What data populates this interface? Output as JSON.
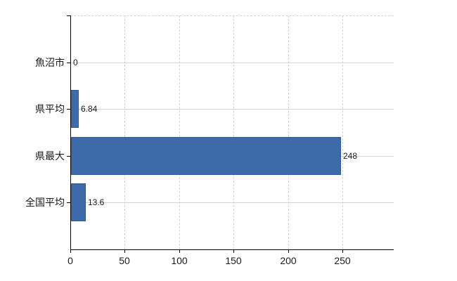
{
  "chart": {
    "background_color": "#ffffff"
  },
  "chart_data": {
    "type": "bar",
    "orientation": "horizontal",
    "title": "",
    "xlabel": "",
    "ylabel": "",
    "categories": [
      "魚沼市",
      "県平均",
      "県最大",
      "全国平均"
    ],
    "values": [
      0,
      6.84,
      248,
      13.6
    ],
    "value_labels": [
      "0",
      "6.84",
      "248",
      "13.6"
    ],
    "xlim": [
      0,
      297
    ],
    "xticks": [
      0,
      50,
      100,
      150,
      200,
      250
    ],
    "legend": "none",
    "grid": "vertical dashed lines at x ticks, solid horizontal line at each category row, dashed top border",
    "bar_color": "#3d6aa8",
    "bar_border_color": "#2f5a94",
    "gridline_color": "#d4d4d4",
    "axis_color": "#000000",
    "text_color": "#1a1a1a"
  }
}
